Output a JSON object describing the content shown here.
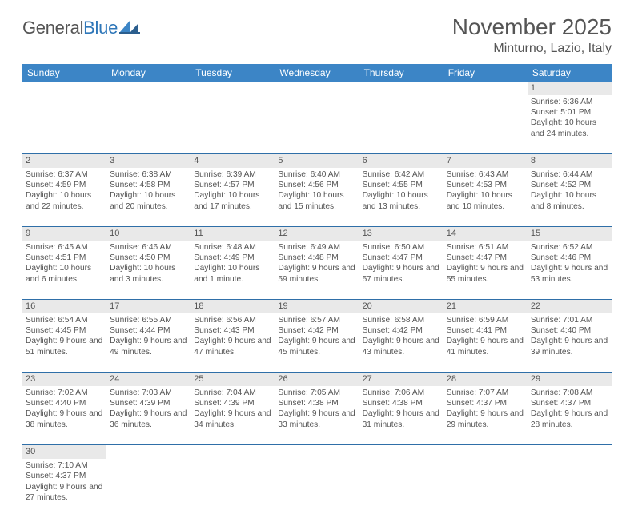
{
  "header": {
    "logo_general": "General",
    "logo_blue": "Blue",
    "month_title": "November 2025",
    "location": "Minturno, Lazio, Italy"
  },
  "style": {
    "header_bg": "#3c85c6",
    "header_fg": "#ffffff",
    "daynum_bg": "#e9e9e9",
    "rule_color": "#2f6fa8",
    "text_color": "#545454",
    "logo_blue_color": "#2f77b9"
  },
  "weekdays": [
    "Sunday",
    "Monday",
    "Tuesday",
    "Wednesday",
    "Thursday",
    "Friday",
    "Saturday"
  ],
  "weeks": [
    [
      null,
      null,
      null,
      null,
      null,
      null,
      {
        "n": "1",
        "sr": "Sunrise: 6:36 AM",
        "ss": "Sunset: 5:01 PM",
        "dl": "Daylight: 10 hours and 24 minutes."
      }
    ],
    [
      {
        "n": "2",
        "sr": "Sunrise: 6:37 AM",
        "ss": "Sunset: 4:59 PM",
        "dl": "Daylight: 10 hours and 22 minutes."
      },
      {
        "n": "3",
        "sr": "Sunrise: 6:38 AM",
        "ss": "Sunset: 4:58 PM",
        "dl": "Daylight: 10 hours and 20 minutes."
      },
      {
        "n": "4",
        "sr": "Sunrise: 6:39 AM",
        "ss": "Sunset: 4:57 PM",
        "dl": "Daylight: 10 hours and 17 minutes."
      },
      {
        "n": "5",
        "sr": "Sunrise: 6:40 AM",
        "ss": "Sunset: 4:56 PM",
        "dl": "Daylight: 10 hours and 15 minutes."
      },
      {
        "n": "6",
        "sr": "Sunrise: 6:42 AM",
        "ss": "Sunset: 4:55 PM",
        "dl": "Daylight: 10 hours and 13 minutes."
      },
      {
        "n": "7",
        "sr": "Sunrise: 6:43 AM",
        "ss": "Sunset: 4:53 PM",
        "dl": "Daylight: 10 hours and 10 minutes."
      },
      {
        "n": "8",
        "sr": "Sunrise: 6:44 AM",
        "ss": "Sunset: 4:52 PM",
        "dl": "Daylight: 10 hours and 8 minutes."
      }
    ],
    [
      {
        "n": "9",
        "sr": "Sunrise: 6:45 AM",
        "ss": "Sunset: 4:51 PM",
        "dl": "Daylight: 10 hours and 6 minutes."
      },
      {
        "n": "10",
        "sr": "Sunrise: 6:46 AM",
        "ss": "Sunset: 4:50 PM",
        "dl": "Daylight: 10 hours and 3 minutes."
      },
      {
        "n": "11",
        "sr": "Sunrise: 6:48 AM",
        "ss": "Sunset: 4:49 PM",
        "dl": "Daylight: 10 hours and 1 minute."
      },
      {
        "n": "12",
        "sr": "Sunrise: 6:49 AM",
        "ss": "Sunset: 4:48 PM",
        "dl": "Daylight: 9 hours and 59 minutes."
      },
      {
        "n": "13",
        "sr": "Sunrise: 6:50 AM",
        "ss": "Sunset: 4:47 PM",
        "dl": "Daylight: 9 hours and 57 minutes."
      },
      {
        "n": "14",
        "sr": "Sunrise: 6:51 AM",
        "ss": "Sunset: 4:47 PM",
        "dl": "Daylight: 9 hours and 55 minutes."
      },
      {
        "n": "15",
        "sr": "Sunrise: 6:52 AM",
        "ss": "Sunset: 4:46 PM",
        "dl": "Daylight: 9 hours and 53 minutes."
      }
    ],
    [
      {
        "n": "16",
        "sr": "Sunrise: 6:54 AM",
        "ss": "Sunset: 4:45 PM",
        "dl": "Daylight: 9 hours and 51 minutes."
      },
      {
        "n": "17",
        "sr": "Sunrise: 6:55 AM",
        "ss": "Sunset: 4:44 PM",
        "dl": "Daylight: 9 hours and 49 minutes."
      },
      {
        "n": "18",
        "sr": "Sunrise: 6:56 AM",
        "ss": "Sunset: 4:43 PM",
        "dl": "Daylight: 9 hours and 47 minutes."
      },
      {
        "n": "19",
        "sr": "Sunrise: 6:57 AM",
        "ss": "Sunset: 4:42 PM",
        "dl": "Daylight: 9 hours and 45 minutes."
      },
      {
        "n": "20",
        "sr": "Sunrise: 6:58 AM",
        "ss": "Sunset: 4:42 PM",
        "dl": "Daylight: 9 hours and 43 minutes."
      },
      {
        "n": "21",
        "sr": "Sunrise: 6:59 AM",
        "ss": "Sunset: 4:41 PM",
        "dl": "Daylight: 9 hours and 41 minutes."
      },
      {
        "n": "22",
        "sr": "Sunrise: 7:01 AM",
        "ss": "Sunset: 4:40 PM",
        "dl": "Daylight: 9 hours and 39 minutes."
      }
    ],
    [
      {
        "n": "23",
        "sr": "Sunrise: 7:02 AM",
        "ss": "Sunset: 4:40 PM",
        "dl": "Daylight: 9 hours and 38 minutes."
      },
      {
        "n": "24",
        "sr": "Sunrise: 7:03 AM",
        "ss": "Sunset: 4:39 PM",
        "dl": "Daylight: 9 hours and 36 minutes."
      },
      {
        "n": "25",
        "sr": "Sunrise: 7:04 AM",
        "ss": "Sunset: 4:39 PM",
        "dl": "Daylight: 9 hours and 34 minutes."
      },
      {
        "n": "26",
        "sr": "Sunrise: 7:05 AM",
        "ss": "Sunset: 4:38 PM",
        "dl": "Daylight: 9 hours and 33 minutes."
      },
      {
        "n": "27",
        "sr": "Sunrise: 7:06 AM",
        "ss": "Sunset: 4:38 PM",
        "dl": "Daylight: 9 hours and 31 minutes."
      },
      {
        "n": "28",
        "sr": "Sunrise: 7:07 AM",
        "ss": "Sunset: 4:37 PM",
        "dl": "Daylight: 9 hours and 29 minutes."
      },
      {
        "n": "29",
        "sr": "Sunrise: 7:08 AM",
        "ss": "Sunset: 4:37 PM",
        "dl": "Daylight: 9 hours and 28 minutes."
      }
    ],
    [
      {
        "n": "30",
        "sr": "Sunrise: 7:10 AM",
        "ss": "Sunset: 4:37 PM",
        "dl": "Daylight: 9 hours and 27 minutes."
      },
      null,
      null,
      null,
      null,
      null,
      null
    ]
  ]
}
